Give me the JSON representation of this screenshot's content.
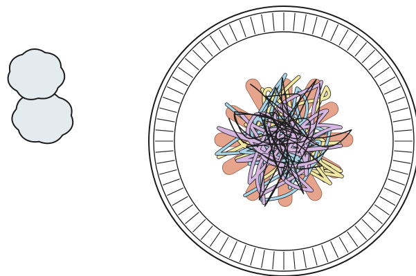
{
  "scene": {
    "objects": [
      {
        "name": "cotton-balls",
        "icon": "cotton-ball-icon",
        "count": 2,
        "color": "#e3ebef"
      },
      {
        "name": "paper-plate",
        "icon": "paper-plate-icon",
        "color": "#ffffff"
      },
      {
        "name": "craft-sticks",
        "icon": "craft-stick-icon",
        "count": 6,
        "color": "#e7a48d"
      },
      {
        "name": "yarn-tangle",
        "icon": "yarn-icon",
        "colors": [
          "#f2e7a2",
          "#a9d3e6",
          "#d5b6e0",
          "#1f1f1f"
        ]
      }
    ]
  }
}
